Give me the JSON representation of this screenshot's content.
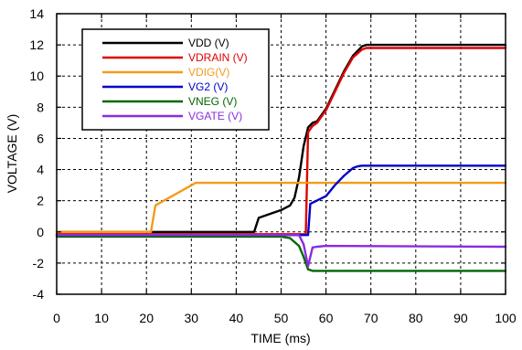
{
  "chart_data": {
    "type": "line",
    "xlabel": "TIME (ms)",
    "ylabel": "VOLTAGE (V)",
    "xlim": [
      0,
      100
    ],
    "ylim": [
      -4,
      14
    ],
    "x_ticks": [
      0,
      10,
      20,
      30,
      40,
      50,
      60,
      70,
      80,
      90,
      100
    ],
    "y_ticks": [
      -4,
      -2,
      0,
      2,
      4,
      6,
      8,
      10,
      12,
      14
    ],
    "grid": true,
    "legend_placement": "top-left",
    "series": [
      {
        "name": "VDD (V)",
        "color": "#000000",
        "x": [
          0,
          44,
          45,
          48,
          50,
          52,
          53,
          54,
          55,
          56,
          57,
          58,
          60,
          62,
          64,
          66,
          68,
          69,
          70,
          100
        ],
        "y": [
          0,
          0,
          0.9,
          1.2,
          1.4,
          1.7,
          2.2,
          3.5,
          5.5,
          6.7,
          7.0,
          7.1,
          7.9,
          9.1,
          10.3,
          11.3,
          11.9,
          12.0,
          12.0,
          12.0
        ]
      },
      {
        "name": "VDRAIN (V)",
        "color": "#dd0000",
        "x": [
          0,
          55.5,
          56,
          57,
          58,
          60,
          62,
          64,
          66,
          68,
          69,
          70,
          100
        ],
        "y": [
          -0.15,
          -0.15,
          6.4,
          6.8,
          7.0,
          7.8,
          9.0,
          10.2,
          11.2,
          11.7,
          11.8,
          11.8,
          11.8
        ]
      },
      {
        "name": "VDIG(V)",
        "color": "#f59a1b",
        "x": [
          0,
          21,
          22,
          31,
          100
        ],
        "y": [
          0,
          0,
          1.7,
          3.15,
          3.15
        ]
      },
      {
        "name": "VG2 (V)",
        "color": "#0000cc",
        "x": [
          0,
          56,
          56.5,
          60,
          62,
          64,
          66,
          67,
          68,
          100
        ],
        "y": [
          -0.2,
          -0.2,
          1.8,
          2.3,
          3.0,
          3.6,
          4.1,
          4.2,
          4.25,
          4.25
        ]
      },
      {
        "name": "VNEG (V)",
        "color": "#006600",
        "x": [
          0,
          50,
          52,
          54,
          55,
          56,
          57,
          100
        ],
        "y": [
          -0.3,
          -0.3,
          -0.4,
          -0.9,
          -1.6,
          -2.4,
          -2.5,
          -2.5
        ]
      },
      {
        "name": "VGATE (V)",
        "color": "#8a2be2",
        "x": [
          0,
          54,
          55,
          56,
          56.5,
          57,
          58,
          60,
          100
        ],
        "y": [
          -0.2,
          -0.2,
          -0.8,
          -2.2,
          -1.6,
          -1.0,
          -0.95,
          -0.9,
          -0.95
        ]
      }
    ]
  }
}
